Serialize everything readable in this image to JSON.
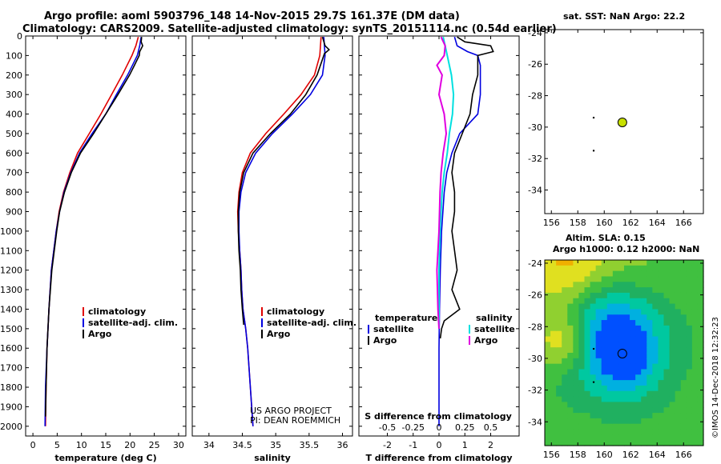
{
  "header": {
    "line1": "Argo profile: aoml 5903796_148 14-Nov-2015 29.7S 161.37E (DM data)",
    "line2": "Climatology: CARS2009. Satellite-adjusted climatology: synTS_20151114.nc (0.54d earlier)"
  },
  "colors": {
    "climatology": "#e00000",
    "satellite": "#0000e0",
    "argo": "#000000",
    "sat_salinity": "#00e0e0",
    "argo_salinity": "#e000e0"
  },
  "depth_axis": {
    "ticks": [
      0,
      100,
      200,
      300,
      400,
      500,
      600,
      700,
      800,
      900,
      1000,
      1100,
      1200,
      1300,
      1400,
      1500,
      1600,
      1700,
      1800,
      1900,
      2000
    ],
    "range": [
      0,
      2050
    ]
  },
  "chart_data": [
    {
      "type": "line",
      "id": "temperature",
      "xlabel": "temperature (deg C)",
      "xlim": [
        -1.5,
        31.5
      ],
      "xticks": [
        0,
        5,
        10,
        15,
        20,
        25,
        30
      ],
      "ylim": [
        0,
        2050
      ],
      "legend": [
        "climatology",
        "satellite-adj. clim.",
        "Argo"
      ],
      "series": [
        {
          "name": "climatology",
          "depth": [
            5,
            50,
            100,
            200,
            300,
            400,
            500,
            600,
            700,
            800,
            900,
            1000,
            1200,
            1400,
            1600,
            1800,
            2000
          ],
          "values": [
            21.7,
            21.2,
            20.4,
            18.4,
            16.2,
            14.0,
            11.6,
            9.2,
            7.6,
            6.3,
            5.4,
            4.8,
            3.8,
            3.3,
            2.9,
            2.7,
            2.6
          ]
        },
        {
          "name": "satellite-adj. clim.",
          "depth": [
            5,
            50,
            100,
            200,
            300,
            400,
            500,
            600,
            700,
            800,
            900,
            1000,
            1200,
            1400,
            1600,
            1800,
            2000
          ],
          "values": [
            22.3,
            22.0,
            21.5,
            19.5,
            17.2,
            15.0,
            12.2,
            9.6,
            7.8,
            6.4,
            5.5,
            4.8,
            3.8,
            3.3,
            2.9,
            2.6,
            2.5
          ]
        },
        {
          "name": "Argo",
          "depth": [
            5,
            30,
            50,
            80,
            100,
            150,
            200,
            300,
            400,
            500,
            600,
            700,
            800,
            900,
            1000,
            1200,
            1400,
            1600,
            1800,
            1950
          ],
          "values": [
            22.4,
            22.3,
            22.6,
            22.0,
            21.9,
            20.9,
            19.9,
            17.5,
            15.0,
            12.5,
            9.8,
            7.9,
            6.5,
            5.5,
            4.9,
            3.9,
            3.3,
            2.9,
            2.7,
            2.6
          ]
        }
      ]
    },
    {
      "type": "line",
      "id": "salinity",
      "xlabel": "salinity",
      "xlim": [
        33.75,
        36.15
      ],
      "xticks": [
        34,
        34.5,
        35,
        35.5,
        36
      ],
      "ylim": [
        0,
        2050
      ],
      "legend": [
        "climatology",
        "satellite-adj. clim.",
        "Argo"
      ],
      "annotation": [
        "US ARGO PROJECT",
        "PI: DEAN ROEMMICH"
      ],
      "series": [
        {
          "name": "climatology",
          "depth": [
            5,
            100,
            200,
            300,
            400,
            500,
            600,
            700,
            800,
            900,
            1000,
            1100,
            1200,
            1300,
            1400,
            1500,
            1600,
            1800,
            2000
          ],
          "values": [
            35.68,
            35.66,
            35.58,
            35.38,
            35.12,
            34.85,
            34.62,
            34.5,
            34.45,
            34.43,
            34.44,
            34.46,
            34.48,
            34.49,
            34.51,
            34.55,
            34.58,
            34.62,
            34.66
          ]
        },
        {
          "name": "satellite-adj. clim.",
          "depth": [
            5,
            100,
            200,
            300,
            400,
            500,
            600,
            700,
            800,
            900,
            1000,
            1100,
            1200,
            1300,
            1400,
            1500,
            1600,
            1800,
            2000
          ],
          "values": [
            35.72,
            35.74,
            35.7,
            35.52,
            35.25,
            34.95,
            34.7,
            34.55,
            34.48,
            34.45,
            34.45,
            34.46,
            34.48,
            34.49,
            34.51,
            34.55,
            34.58,
            34.62,
            34.66
          ]
        },
        {
          "name": "Argo",
          "depth": [
            5,
            50,
            70,
            90,
            120,
            200,
            300,
            400,
            500,
            600,
            700,
            800,
            900,
            1000,
            1100,
            1200,
            1300,
            1400,
            1480
          ],
          "values": [
            35.7,
            35.74,
            35.8,
            35.73,
            35.7,
            35.62,
            35.45,
            35.22,
            34.92,
            34.66,
            34.52,
            34.46,
            34.44,
            34.44,
            34.45,
            34.47,
            34.48,
            34.5,
            34.52
          ]
        }
      ]
    },
    {
      "type": "line",
      "id": "difference",
      "xlabel": "T difference from climatology",
      "xlabel_top": "S difference from climatology",
      "xlim": [
        -3.1,
        3.1
      ],
      "xticks": [
        -2,
        -1,
        0,
        1,
        2
      ],
      "xticks_top": [
        "-0.5",
        "-0.25",
        "0",
        "0.25",
        "0.5"
      ],
      "ylim": [
        0,
        2050
      ],
      "legend": {
        "temperature": "temperature",
        "salinity": "salinity",
        "items": [
          "satellite",
          "Argo",
          "satellite",
          "Argo"
        ]
      },
      "series": [
        {
          "name": "satellite",
          "group": "temperature",
          "depth": [
            5,
            50,
            80,
            100,
            150,
            200,
            300,
            400,
            500,
            600,
            700,
            800,
            1000,
            1200,
            1400,
            1600,
            1800,
            2000
          ],
          "values": [
            0.6,
            0.7,
            1.1,
            1.5,
            1.6,
            1.6,
            1.6,
            1.5,
            0.8,
            0.5,
            0.3,
            0.2,
            0.1,
            0.05,
            0.02,
            0.0,
            0.0,
            0.0
          ]
        },
        {
          "name": "Argo",
          "group": "temperature",
          "depth": [
            5,
            30,
            50,
            80,
            100,
            200,
            300,
            400,
            500,
            600,
            700,
            800,
            900,
            1000,
            1100,
            1200,
            1300,
            1400,
            1460,
            1500,
            1550
          ],
          "values": [
            0.7,
            1.0,
            2.0,
            2.1,
            1.5,
            1.5,
            1.3,
            1.2,
            0.9,
            0.6,
            0.5,
            0.6,
            0.6,
            0.5,
            0.6,
            0.7,
            0.5,
            0.8,
            0.2,
            0.1,
            0.05
          ]
        },
        {
          "name": "satellite",
          "group": "salinity",
          "depth": [
            5,
            100,
            200,
            300,
            400,
            500,
            600,
            700,
            800,
            1000,
            1200,
            1400,
            1500
          ],
          "values": [
            0.04,
            0.08,
            0.12,
            0.14,
            0.13,
            0.1,
            0.08,
            0.05,
            0.03,
            0.01,
            0.0,
            0.0,
            0.0
          ]
        },
        {
          "name": "Argo",
          "group": "salinity",
          "depth": [
            5,
            50,
            100,
            150,
            200,
            300,
            400,
            500,
            600,
            700,
            800,
            1000,
            1200,
            1400,
            1500
          ],
          "values": [
            0.02,
            0.06,
            0.05,
            -0.02,
            0.03,
            0.0,
            0.05,
            0.07,
            0.04,
            0.02,
            0.01,
            0.0,
            -0.02,
            -0.01,
            0.0
          ]
        }
      ]
    },
    {
      "type": "scatter",
      "id": "sst-map",
      "title": "sat. SST: NaN Argo: 22.2",
      "xlim": [
        155.5,
        167.5
      ],
      "ylim": [
        -35.5,
        -23.8
      ],
      "xticks": [
        156,
        158,
        160,
        162,
        164,
        166
      ],
      "yticks": [
        -24,
        -26,
        -28,
        -30,
        -32,
        -34
      ],
      "marker": {
        "lon": 161.37,
        "lat": -29.7,
        "color": "#c8e000"
      },
      "points": [
        {
          "lon": 159.2,
          "lat": -29.4
        },
        {
          "lon": 159.2,
          "lat": -31.5
        }
      ]
    },
    {
      "type": "heatmap",
      "id": "sla-map",
      "title_line1": "Altim. SLA: 0.15",
      "title_line2": "Argo h1000: 0.12 h2000: NaN",
      "xlim": [
        155.5,
        167.5
      ],
      "ylim": [
        -35.5,
        -23.8
      ],
      "xticks": [
        156,
        158,
        160,
        162,
        164,
        166
      ],
      "yticks": [
        -24,
        -26,
        -28,
        -30,
        -32,
        -34
      ],
      "marker": {
        "lon": 161.37,
        "lat": -29.7
      },
      "points": [
        {
          "lon": 159.2,
          "lat": -29.4
        },
        {
          "lon": 159.2,
          "lat": -31.5
        }
      ]
    }
  ],
  "stamp": "©IMOS 14-Dec-2018 12:32:23"
}
